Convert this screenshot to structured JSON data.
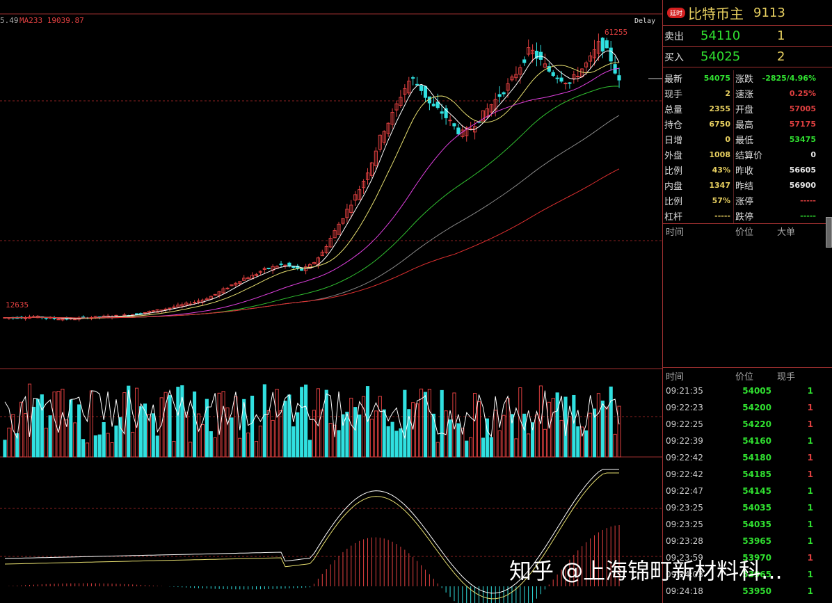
{
  "colors": {
    "up": "#e04040",
    "down": "#30e0e0",
    "ma5": "#ffffff",
    "ma10": "#e8e070",
    "ma20": "#e040e0",
    "ma60": "#30c030",
    "ma120": "#888888",
    "ma233": "#e03030"
  },
  "main_chart": {
    "ma_label": "MA233 19039.87",
    "left_value_partial": "5.49",
    "delay_label": "Delay",
    "high_label": "61255",
    "low_label": "12635"
  },
  "chart_data": [
    {
      "type": "candlestick",
      "title": "",
      "series": [
        {
          "name": "MA233",
          "value": 19039.87
        }
      ],
      "annotations": [
        {
          "text": "61255",
          "meaning": "period high"
        },
        {
          "text": "12635",
          "meaning": "period low"
        }
      ],
      "close_path_points": [
        12635,
        12600,
        12700,
        12800,
        12650,
        12500,
        12400,
        12450,
        12600,
        12700,
        12800,
        12900,
        13000,
        13200,
        13500,
        13800,
        14100,
        14500,
        14900,
        15300,
        15800,
        16500,
        17500,
        18500,
        19500,
        20000,
        21000,
        21500,
        22000,
        21500,
        21000,
        22000,
        24000,
        27000,
        30000,
        33000,
        36000,
        40000,
        45000,
        48000,
        52000,
        55000,
        53000,
        50000,
        49000,
        47000,
        45000,
        46000,
        48000,
        50000,
        52000,
        54000,
        57000,
        60000,
        58000,
        56000,
        55000,
        54000,
        56000,
        58000,
        61000,
        59000,
        54075
      ]
    },
    {
      "type": "bar",
      "title": "volume",
      "pattern": "alternating red/cyan volume bars with white oscillator line"
    },
    {
      "type": "bar",
      "title": "MACD",
      "pattern": "histogram with two signal lines"
    }
  ],
  "quote": {
    "tag": "延时",
    "name": "比特币主",
    "code": "9113",
    "sell_label": "卖出",
    "sell_price": "54110",
    "sell_qty": "1",
    "buy_label": "买入",
    "buy_price": "54025",
    "buy_qty": "2"
  },
  "stats": [
    {
      "lk": "最新",
      "lv": "54075",
      "lc": "#30e030",
      "rk": "涨跌",
      "rv": "-2825/4.96%",
      "rc": "#30e030"
    },
    {
      "lk": "现手",
      "lv": "2",
      "lc": "#e8d060",
      "rk": "速涨",
      "rv": "0.25%",
      "rc": "#e04040"
    },
    {
      "lk": "总量",
      "lv": "2355",
      "lc": "#e8d060",
      "rk": "开盘",
      "rv": "57005",
      "rc": "#e04040"
    },
    {
      "lk": "持仓",
      "lv": "6750",
      "lc": "#e8d060",
      "rk": "最高",
      "rv": "57175",
      "rc": "#e04040"
    },
    {
      "lk": "日增",
      "lv": "0",
      "lc": "#e8d060",
      "rk": "最低",
      "rv": "53475",
      "rc": "#30e030"
    },
    {
      "lk": "外盘",
      "lv": "1008",
      "lc": "#e8d060",
      "rk": "结算价",
      "rv": "0",
      "rc": "#e8e8e8"
    },
    {
      "lk": "比例",
      "lv": "43%",
      "lc": "#e8d060",
      "rk": "昨收",
      "rv": "56605",
      "rc": "#e8e8e8"
    },
    {
      "lk": "内盘",
      "lv": "1347",
      "lc": "#e8d060",
      "rk": "昨结",
      "rv": "56900",
      "rc": "#e8e8e8"
    },
    {
      "lk": "比例",
      "lv": "57%",
      "lc": "#e8d060",
      "rk": "涨停",
      "rv": "-----",
      "rc": "#e04040"
    },
    {
      "lk": "杠杆",
      "lv": "-----",
      "lc": "#e8d060",
      "rk": "跌停",
      "rv": "-----",
      "rc": "#30e030"
    }
  ],
  "big_orders": {
    "h_time": "时间",
    "h_price": "价位",
    "h_big": "大单"
  },
  "ticks": {
    "h_time": "时间",
    "h_price": "价位",
    "h_qty": "现手",
    "rows": [
      {
        "time": "09:21:35",
        "price": "54005",
        "qty": "1",
        "dir": "down"
      },
      {
        "time": "09:22:23",
        "price": "54200",
        "qty": "1",
        "dir": "up"
      },
      {
        "time": "09:22:25",
        "price": "54220",
        "qty": "1",
        "dir": "up"
      },
      {
        "time": "09:22:39",
        "price": "54160",
        "qty": "1",
        "dir": "down"
      },
      {
        "time": "09:22:42",
        "price": "54180",
        "qty": "1",
        "dir": "up"
      },
      {
        "time": "09:22:42",
        "price": "54185",
        "qty": "1",
        "dir": "up"
      },
      {
        "time": "09:22:47",
        "price": "54145",
        "qty": "1",
        "dir": "down"
      },
      {
        "time": "09:23:25",
        "price": "54035",
        "qty": "1",
        "dir": "down"
      },
      {
        "time": "09:23:25",
        "price": "54035",
        "qty": "1",
        "dir": "down"
      },
      {
        "time": "09:23:28",
        "price": "53965",
        "qty": "1",
        "dir": "down"
      },
      {
        "time": "09:23:59",
        "price": "53970",
        "qty": "1",
        "dir": "up"
      },
      {
        "time": "09:24:03",
        "price": "53965",
        "qty": "1",
        "dir": "down"
      },
      {
        "time": "09:24:18",
        "price": "53950",
        "qty": "1",
        "dir": "down"
      }
    ]
  },
  "watermark": "知乎 @上海锦町新材料科..."
}
